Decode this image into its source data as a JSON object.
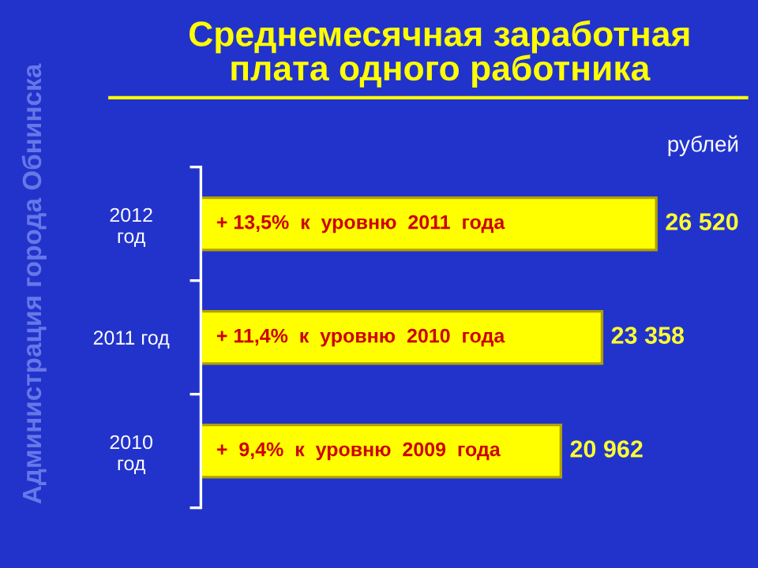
{
  "chart_data": {
    "type": "bar",
    "orientation": "horizontal",
    "title": "Среднемесячная заработная\nплата одного работника",
    "categories": [
      "2012\nгод",
      "2011 год",
      "2010\nгод"
    ],
    "values": [
      26520,
      23358,
      20962
    ],
    "value_labels": [
      "26 520",
      "23 358",
      "20 962"
    ],
    "color": "#ffff00",
    "annotations": [
      "+ 13,5%  к  уровню  2011  года",
      "+ 11,4%  к  уровню  2010  года",
      "+  9,4%  к  уровню  2009  года",
      "рублей",
      "Администрация города Обнинска"
    ],
    "grid": false,
    "legend": false
  }
}
